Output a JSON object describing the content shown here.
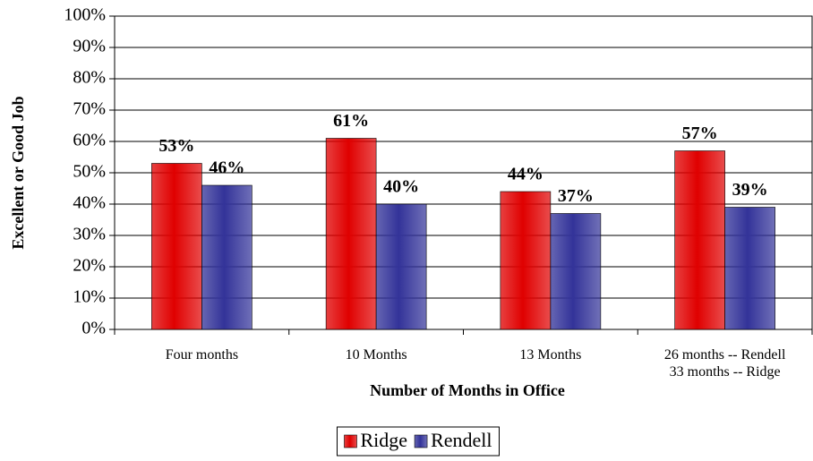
{
  "chart_data": {
    "type": "bar",
    "x_label": "Number of Months in Office",
    "y_label": "Excellent or Good Job",
    "categories": [
      "Four months",
      "10 Months",
      "13 Months",
      "26 months -- Rendell\n33 months -- Ridge"
    ],
    "series": [
      {
        "name": "Ridge",
        "color": "#e00000",
        "values": [
          53,
          61,
          44,
          57
        ],
        "value_labels": [
          "53%",
          "61%",
          "44%",
          "57%"
        ]
      },
      {
        "name": "Rendell",
        "color": "#333399",
        "values": [
          46,
          40,
          37,
          39
        ],
        "value_labels": [
          "46%",
          "40%",
          "37%",
          "39%"
        ]
      }
    ],
    "ylim": [
      0,
      100
    ],
    "yticks": [
      {
        "value": 0,
        "label": "0%"
      },
      {
        "value": 10,
        "label": "10%"
      },
      {
        "value": 20,
        "label": "20%"
      },
      {
        "value": 30,
        "label": "30%"
      },
      {
        "value": 40,
        "label": "40%"
      },
      {
        "value": 50,
        "label": "50%"
      },
      {
        "value": 60,
        "label": "60%"
      },
      {
        "value": 70,
        "label": "70%"
      },
      {
        "value": 80,
        "label": "80%"
      },
      {
        "value": 90,
        "label": "90%"
      },
      {
        "value": 100,
        "label": "100%"
      }
    ],
    "grid": true,
    "legend": "bottom"
  }
}
